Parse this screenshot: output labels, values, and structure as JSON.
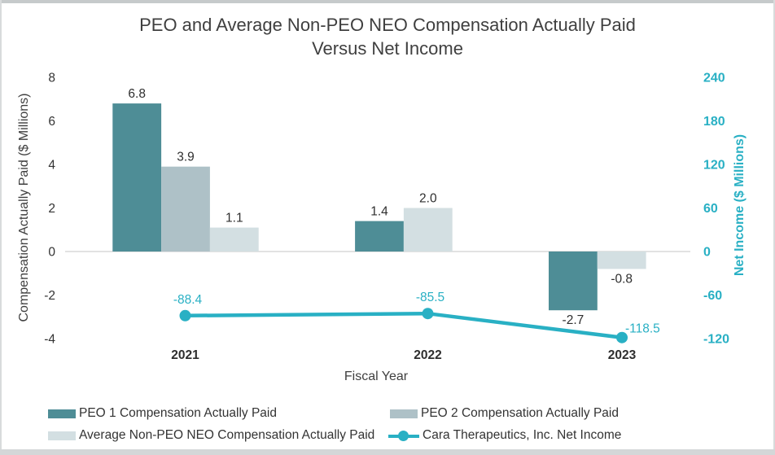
{
  "chart_data": {
    "type": "bar",
    "subtype": "combo-bar-line-dual-axis",
    "title_line1": "PEO and Average Non-PEO NEO Compensation Actually Paid",
    "title_line2": "Versus Net Income",
    "xlabel": "Fiscal Year",
    "categories": [
      "2021",
      "2022",
      "2023"
    ],
    "left_axis": {
      "label": "Compensation Actually Paid ($ Millions)",
      "ticks": [
        8,
        6,
        4,
        2,
        0,
        -2,
        -4
      ],
      "range": [
        -4,
        8
      ],
      "grid": "zero-line-only"
    },
    "right_axis": {
      "label": "Net Income ($ Millions)",
      "ticks": [
        240,
        180,
        120,
        60,
        0,
        -60,
        -120
      ],
      "range": [
        -120,
        240
      ],
      "color": "#29b0c4"
    },
    "bar_series": [
      {
        "name": "PEO 1 Compensation Actually Paid",
        "color": "#4e8d96",
        "values": [
          6.8,
          1.4,
          -2.7
        ]
      },
      {
        "name": "PEO 2 Compensation Actually Paid",
        "color": "#aec1c7",
        "values": [
          3.9,
          null,
          null
        ]
      },
      {
        "name": "Average Non-PEO NEO Compensation Actually Paid",
        "color": "#d3dfe2",
        "values": [
          1.1,
          2.0,
          -0.8
        ]
      }
    ],
    "line_series": {
      "name": "Cara Therapeutics, Inc. Net Income",
      "color": "#29b0c4",
      "values": [
        -88.4,
        -85.5,
        -118.5
      ]
    },
    "legend_position": "bottom-two-columns",
    "zero_line_color": "#d9d9d9"
  }
}
